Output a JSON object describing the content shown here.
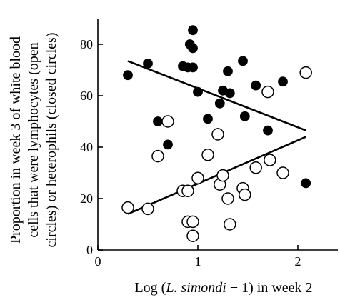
{
  "chart_data": {
    "type": "scatter",
    "xlabel_prefix": "Log (",
    "xlabel_species": "L. simondi",
    "xlabel_suffix": " + 1) in week 2",
    "ylabel_lines": [
      "Proportion in week 3 of white blood",
      "cells that were lymphocytes (open",
      "circles) or heterophils (closed circles)"
    ],
    "xlim": [
      0,
      2.4
    ],
    "ylim": [
      0,
      90
    ],
    "x_ticks": [
      0,
      1,
      2
    ],
    "y_ticks": [
      0,
      20,
      40,
      60,
      80
    ],
    "series": [
      {
        "marker": "closed",
        "points": [
          [
            0.3,
            68
          ],
          [
            0.5,
            72.5
          ],
          [
            0.6,
            50
          ],
          [
            0.7,
            41
          ],
          [
            0.85,
            71.5
          ],
          [
            0.9,
            71
          ],
          [
            0.92,
            80
          ],
          [
            0.95,
            85.5
          ],
          [
            0.95,
            78.5
          ],
          [
            0.95,
            71
          ],
          [
            1.0,
            61.5
          ],
          [
            1.1,
            51
          ],
          [
            1.2,
            45.5
          ],
          [
            1.22,
            57
          ],
          [
            1.25,
            62
          ],
          [
            1.3,
            69.5
          ],
          [
            1.32,
            61
          ],
          [
            1.45,
            73.5
          ],
          [
            1.47,
            52
          ],
          [
            1.58,
            64
          ],
          [
            1.7,
            46.5
          ],
          [
            1.72,
            35.5
          ],
          [
            1.85,
            65.5
          ],
          [
            2.08,
            26
          ]
        ],
        "trend": [
          [
            0.3,
            73.5
          ],
          [
            2.08,
            46.5
          ]
        ]
      },
      {
        "marker": "open",
        "points": [
          [
            0.3,
            16.5
          ],
          [
            0.5,
            16
          ],
          [
            0.6,
            36.5
          ],
          [
            0.7,
            50
          ],
          [
            0.85,
            23
          ],
          [
            0.9,
            23
          ],
          [
            0.9,
            11
          ],
          [
            0.95,
            11
          ],
          [
            0.95,
            5.5
          ],
          [
            1.0,
            28
          ],
          [
            1.1,
            37
          ],
          [
            1.2,
            45
          ],
          [
            1.22,
            25.5
          ],
          [
            1.25,
            29
          ],
          [
            1.3,
            20
          ],
          [
            1.32,
            10
          ],
          [
            1.45,
            24
          ],
          [
            1.47,
            21.5
          ],
          [
            1.58,
            32
          ],
          [
            1.7,
            61.5
          ],
          [
            1.72,
            35
          ],
          [
            1.85,
            30
          ],
          [
            2.08,
            69
          ]
        ],
        "trend": [
          [
            0.3,
            14
          ],
          [
            2.08,
            44
          ]
        ]
      }
    ]
  }
}
